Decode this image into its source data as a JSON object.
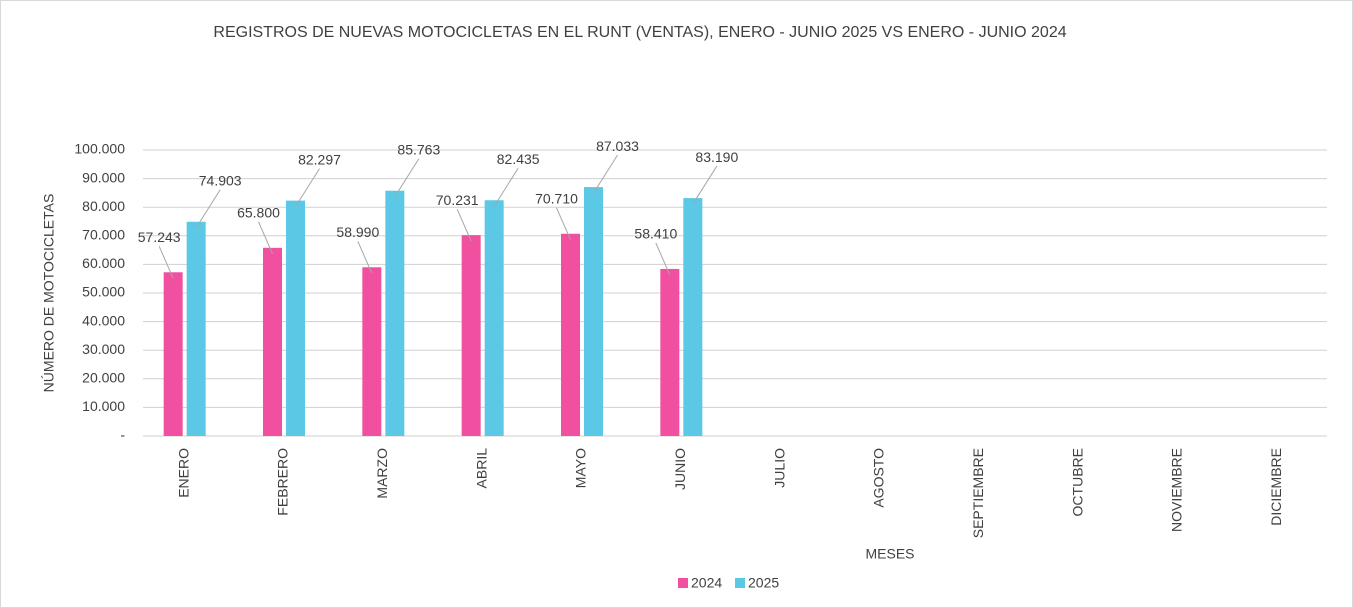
{
  "chart_data": {
    "type": "bar",
    "title": "REGISTROS DE NUEVAS MOTOCICLETAS EN EL RUNT (VENTAS), ENERO - JUNIO 2025 VS ENERO - JUNIO 2024",
    "x_label": "MESES",
    "y_label": "NÚMERO DE MOTOCICLETAS",
    "categories": [
      "ENERO",
      "FEBRERO",
      "MARZO",
      "ABRIL",
      "MAYO",
      "JUNIO",
      "JULIO",
      "AGOSTO",
      "SEPTIEMBRE",
      "OCTUBRE",
      "NOVIEMBRE",
      "DICIEMBRE"
    ],
    "series": [
      {
        "name": "2024",
        "color": "#f0509f",
        "values": [
          57243,
          65800,
          58990,
          70231,
          70710,
          58410,
          null,
          null,
          null,
          null,
          null,
          null
        ],
        "value_labels": [
          "57.243",
          "65.800",
          "58.990",
          "70.231",
          "70.710",
          "58.410",
          null,
          null,
          null,
          null,
          null,
          null
        ]
      },
      {
        "name": "2025",
        "color": "#5bc8e6",
        "values": [
          74903,
          82297,
          85763,
          82435,
          87033,
          83190,
          null,
          null,
          null,
          null,
          null,
          null
        ],
        "value_labels": [
          "74.903",
          "82.297",
          "85.763",
          "82.435",
          "87.033",
          "83.190",
          null,
          null,
          null,
          null,
          null,
          null
        ]
      }
    ],
    "ylim": [
      0,
      100000
    ],
    "yticks": [
      {
        "value": 0,
        "label": "-"
      },
      {
        "value": 10000,
        "label": "10.000"
      },
      {
        "value": 20000,
        "label": "20.000"
      },
      {
        "value": 30000,
        "label": "30.000"
      },
      {
        "value": 40000,
        "label": "40.000"
      },
      {
        "value": 50000,
        "label": "50.000"
      },
      {
        "value": 60000,
        "label": "60.000"
      },
      {
        "value": 70000,
        "label": "70.000"
      },
      {
        "value": 80000,
        "label": "80.000"
      },
      {
        "value": 90000,
        "label": "90.000"
      },
      {
        "value": 100000,
        "label": "100.000"
      }
    ],
    "grid": true,
    "legend": "bottom"
  }
}
